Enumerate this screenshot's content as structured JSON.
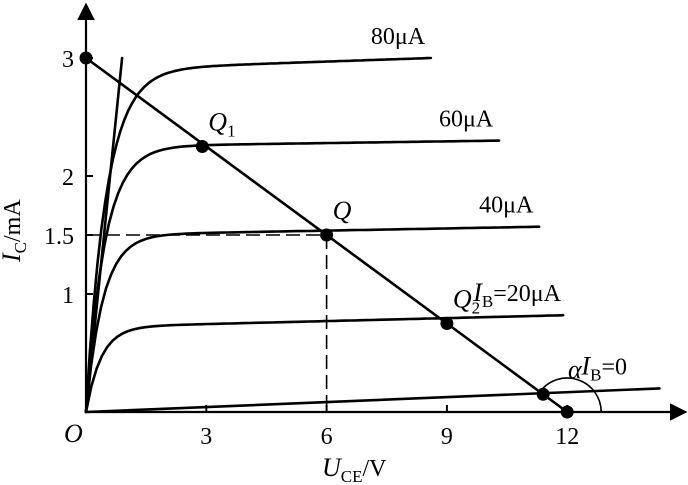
{
  "chart_data": {
    "type": "line",
    "title": "",
    "xlabel": {
      "main": "U",
      "sub": "CE",
      "unit": "/V"
    },
    "ylabel": {
      "main": "I",
      "sub": "C",
      "unit": "/mA"
    },
    "xlim": [
      0,
      14.6
    ],
    "ylim": [
      0,
      3.4
    ],
    "origin_label": "O",
    "x_ticks": [
      {
        "v": 3,
        "label": "3"
      },
      {
        "v": 6,
        "label": "6"
      },
      {
        "v": 9,
        "label": "9"
      },
      {
        "v": 12,
        "label": "12"
      }
    ],
    "y_ticks": [
      {
        "v": 1,
        "label": "1"
      },
      {
        "v": 1.5,
        "label": "1.5"
      },
      {
        "v": 2,
        "label": "2"
      },
      {
        "v": 3,
        "label": "3"
      }
    ],
    "series": [
      {
        "name": "80μA",
        "label": "80μA",
        "sat": 2.9,
        "end_x": 8.6,
        "end_y": 3.0
      },
      {
        "name": "60μA",
        "label": "60μA",
        "sat": 2.25,
        "end_x": 10.3,
        "end_y": 2.3
      },
      {
        "name": "40μA",
        "label": "40μA",
        "sat": 1.5,
        "end_x": 11.3,
        "end_y": 1.57
      },
      {
        "name": "I_B=20μA",
        "label_main": "I",
        "label_sub": "B",
        "label_rest": "=20μA",
        "sat": 0.72,
        "end_x": 11.9,
        "end_y": 0.82
      },
      {
        "name": "I_B=0",
        "label_main": "I",
        "label_sub": "B",
        "label_rest": "=0",
        "end_x": 14.3,
        "end_y": 0.2
      }
    ],
    "saturation_boundary": [
      [
        0,
        0
      ],
      [
        0.9,
        3.0
      ]
    ],
    "load_line": [
      [
        0,
        3.0
      ],
      [
        12,
        0
      ]
    ],
    "dashed_lines": [
      [
        [
          0,
          1.5
        ],
        [
          6,
          1.5
        ]
      ],
      [
        [
          6,
          1.5
        ],
        [
          6,
          0
        ]
      ]
    ],
    "points": [
      {
        "label": "",
        "x": 0,
        "y": 3.0
      },
      {
        "label_main": "Q",
        "label_sub": "1",
        "x": 2.9,
        "y": 2.25
      },
      {
        "label_main": "Q",
        "label_sub": "",
        "x": 6,
        "y": 1.5
      },
      {
        "label_main": "Q",
        "label_sub": "2",
        "x": 9,
        "y": 0.75
      },
      {
        "label": "",
        "x": 11.4,
        "y": 0.15
      },
      {
        "label": "",
        "x": 12,
        "y": 0
      }
    ],
    "angle_label": "α"
  }
}
